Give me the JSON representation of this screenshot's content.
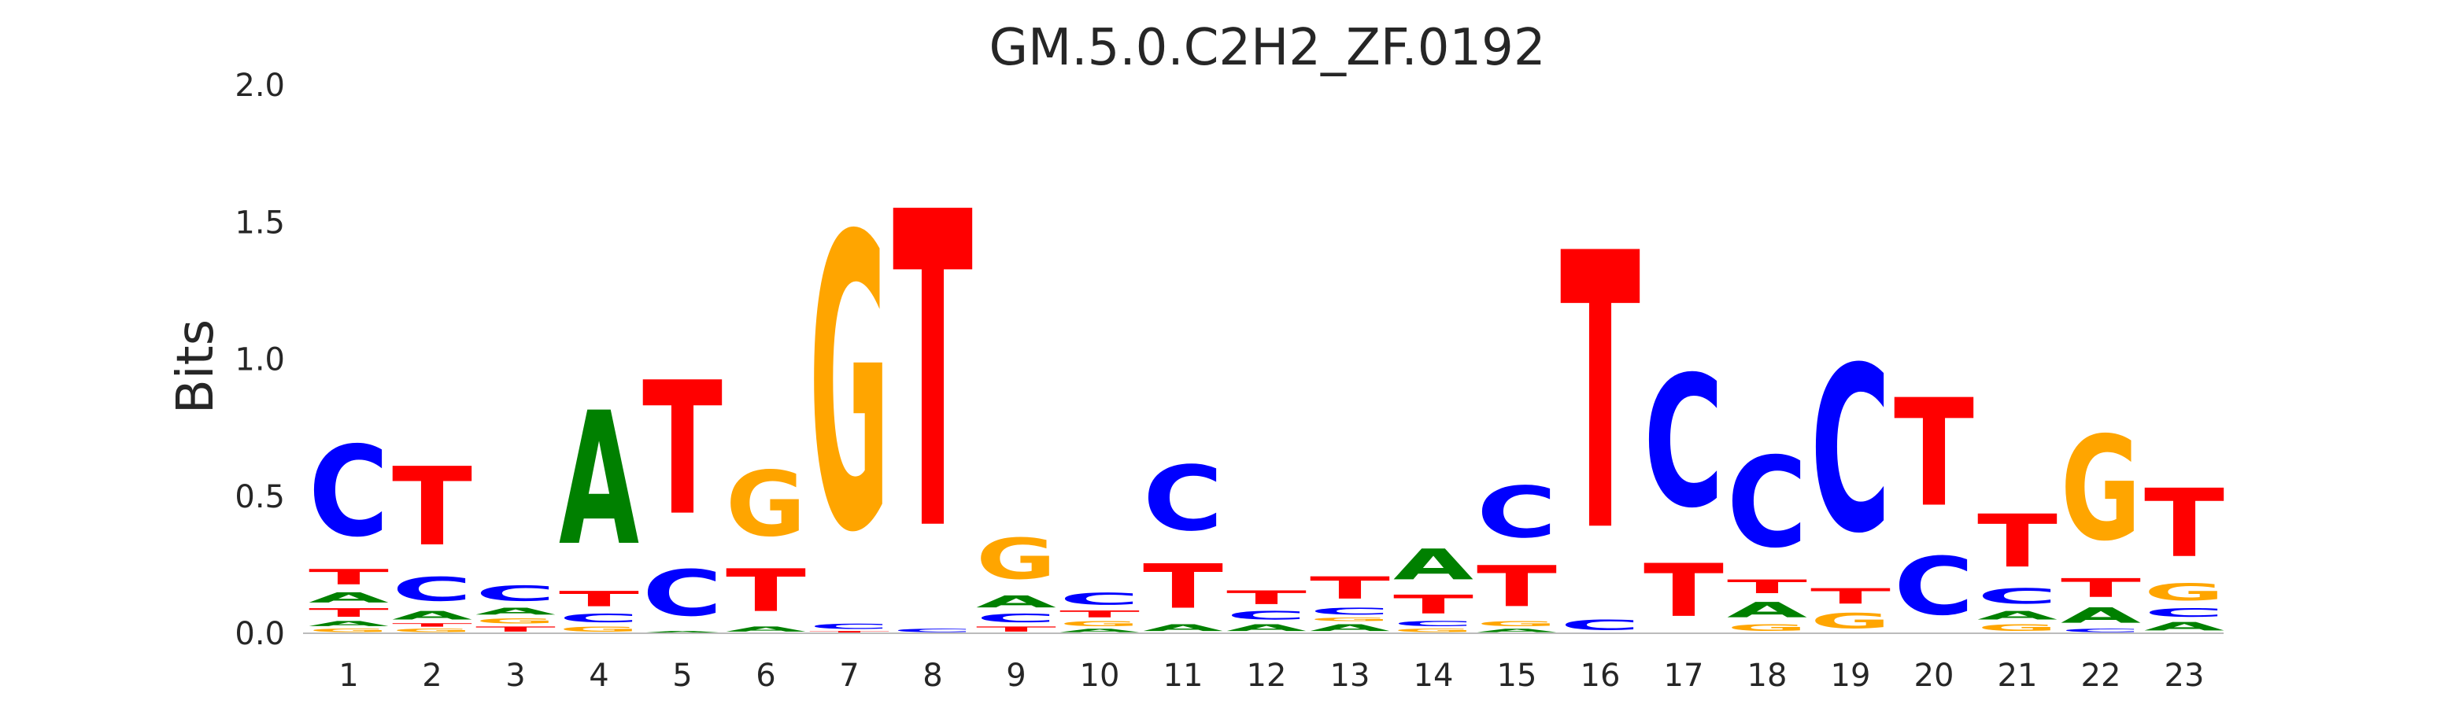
{
  "chart_data": {
    "type": "sequence-logo",
    "title": "GM.5.0.C2H2_ZF.0192",
    "xlabel": "",
    "ylabel": "Bits",
    "ylim": [
      0,
      2.0
    ],
    "yticks": [
      "0.0",
      "0.5",
      "1.0",
      "1.5",
      "2.0"
    ],
    "grid": false,
    "colors": {
      "A": "#008000",
      "C": "#0000ff",
      "G": "#ffa500",
      "T": "#ff0000"
    },
    "positions": [
      {
        "label": "1",
        "stack": [
          [
            "G",
            0.02
          ],
          [
            "A",
            0.03
          ],
          [
            "T",
            0.05
          ],
          [
            "A",
            0.06
          ],
          [
            "T",
            0.09
          ],
          [
            "C",
            0.53
          ]
        ]
      },
      {
        "label": "2",
        "stack": [
          [
            "G",
            0.02
          ],
          [
            "T",
            0.02
          ],
          [
            "A",
            0.05
          ],
          [
            "C",
            0.14
          ],
          [
            "T",
            0.46
          ]
        ]
      },
      {
        "label": "3",
        "stack": [
          [
            "T",
            0.03
          ],
          [
            "G",
            0.03
          ],
          [
            "A",
            0.04
          ],
          [
            "C",
            0.09
          ]
        ]
      },
      {
        "label": "4",
        "stack": [
          [
            "G",
            0.03
          ],
          [
            "C",
            0.05
          ],
          [
            "T",
            0.09
          ],
          [
            "A",
            0.78
          ]
        ]
      },
      {
        "label": "5",
        "stack": [
          [
            "A",
            0.01
          ],
          [
            "C",
            0.27
          ],
          [
            "T",
            0.78
          ]
        ]
      },
      {
        "label": "6",
        "stack": [
          [
            "A",
            0.03
          ],
          [
            "T",
            0.25
          ],
          [
            "G",
            0.38
          ]
        ]
      },
      {
        "label": "7",
        "stack": [
          [
            "T",
            0.01
          ],
          [
            "C",
            0.03
          ],
          [
            "G",
            1.72
          ]
        ]
      },
      {
        "label": "8",
        "stack": [
          [
            "C",
            0.02
          ],
          [
            "T",
            1.85
          ]
        ]
      },
      {
        "label": "9",
        "stack": [
          [
            "T",
            0.03
          ],
          [
            "C",
            0.05
          ],
          [
            "A",
            0.07
          ],
          [
            "G",
            0.24
          ]
        ]
      },
      {
        "label": "10",
        "stack": [
          [
            "A",
            0.02
          ],
          [
            "G",
            0.03
          ],
          [
            "T",
            0.04
          ],
          [
            "C",
            0.07
          ]
        ]
      },
      {
        "label": "11",
        "stack": [
          [
            "A",
            0.04
          ],
          [
            "T",
            0.26
          ],
          [
            "C",
            0.38
          ]
        ]
      },
      {
        "label": "12",
        "stack": [
          [
            "A",
            0.04
          ],
          [
            "C",
            0.05
          ],
          [
            "T",
            0.08
          ]
        ]
      },
      {
        "label": "13",
        "stack": [
          [
            "A",
            0.04
          ],
          [
            "G",
            0.02
          ],
          [
            "C",
            0.04
          ],
          [
            "T",
            0.13
          ]
        ]
      },
      {
        "label": "14",
        "stack": [
          [
            "G",
            0.02
          ],
          [
            "C",
            0.03
          ],
          [
            "T",
            0.11
          ],
          [
            "A",
            0.18
          ]
        ]
      },
      {
        "label": "15",
        "stack": [
          [
            "A",
            0.02
          ],
          [
            "G",
            0.03
          ],
          [
            "T",
            0.24
          ],
          [
            "C",
            0.3
          ]
        ]
      },
      {
        "label": "16",
        "stack": [
          [
            "C",
            0.06
          ],
          [
            "T",
            1.62
          ]
        ]
      },
      {
        "label": "17",
        "stack": [
          [
            "T",
            0.31
          ],
          [
            "C",
            0.77
          ]
        ]
      },
      {
        "label": "18",
        "stack": [
          [
            "G",
            0.04
          ],
          [
            "A",
            0.09
          ],
          [
            "T",
            0.08
          ],
          [
            "C",
            0.53
          ]
        ]
      },
      {
        "label": "19",
        "stack": [
          [
            "G",
            0.09
          ],
          [
            "T",
            0.09
          ],
          [
            "C",
            0.97
          ]
        ]
      },
      {
        "label": "20",
        "stack": [
          [
            "C",
            0.34
          ],
          [
            "T",
            0.63
          ]
        ]
      },
      {
        "label": "21",
        "stack": [
          [
            "G",
            0.04
          ],
          [
            "A",
            0.05
          ],
          [
            "C",
            0.09
          ],
          [
            "T",
            0.31
          ]
        ]
      },
      {
        "label": "22",
        "stack": [
          [
            "C",
            0.02
          ],
          [
            "A",
            0.09
          ],
          [
            "T",
            0.11
          ],
          [
            "G",
            0.61
          ]
        ]
      },
      {
        "label": "23",
        "stack": [
          [
            "A",
            0.05
          ],
          [
            "C",
            0.05
          ],
          [
            "G",
            0.1
          ],
          [
            "T",
            0.4
          ]
        ]
      }
    ]
  }
}
